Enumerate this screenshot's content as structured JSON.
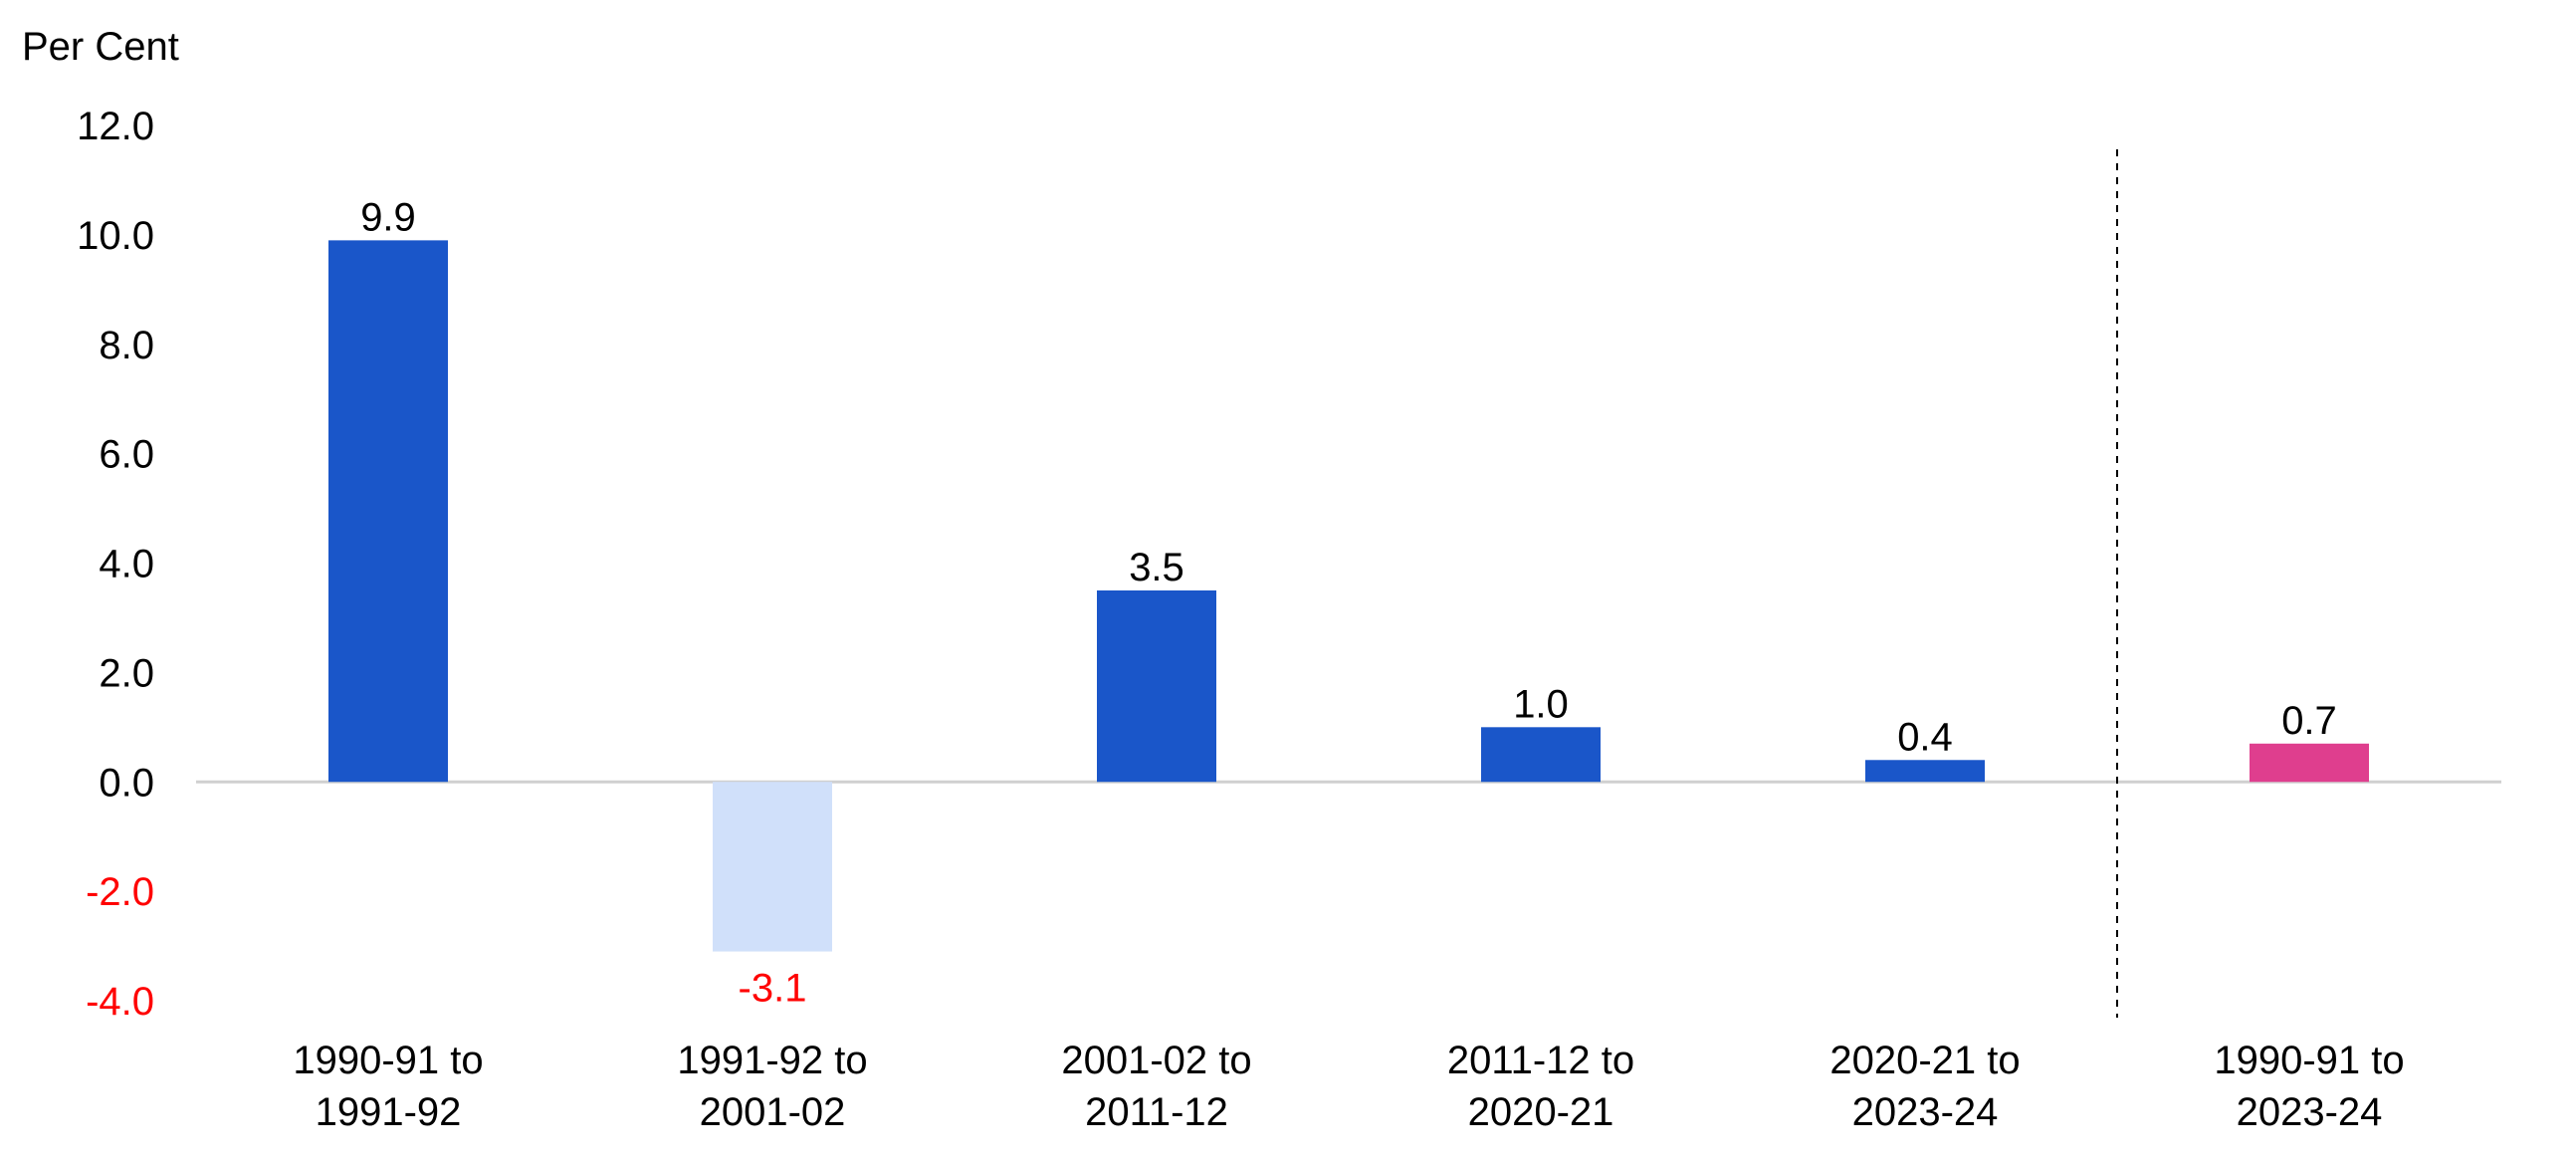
{
  "chart_data": {
    "type": "bar",
    "unit_label": "Per Cent",
    "categories": [
      [
        "1990-91 to",
        "1991-92"
      ],
      [
        "1991-92 to",
        "2001-02"
      ],
      [
        "2001-02 to",
        "2011-12"
      ],
      [
        "2011-12 to",
        "2020-21"
      ],
      [
        "2020-21 to",
        "2023-24"
      ],
      [
        "1990-91 to",
        "2023-24"
      ]
    ],
    "values": [
      9.9,
      -3.1,
      3.5,
      1.0,
      0.4,
      0.7
    ],
    "value_labels": [
      "9.9",
      "-3.1",
      "3.5",
      "1.0",
      "0.4",
      "0.7"
    ],
    "bar_colors": [
      "#1a56c9",
      "#d0e0fa",
      "#1a56c9",
      "#1a56c9",
      "#1a56c9",
      "#df3e8e"
    ],
    "ylim": [
      -4.0,
      12.0
    ],
    "yticks": [
      "12.0",
      "10.0",
      "8.0",
      "6.0",
      "4.0",
      "2.0",
      "0.0",
      "-2.0",
      "-4.0"
    ],
    "ytick_values": [
      12,
      10,
      8,
      6,
      4,
      2,
      0,
      -2,
      -4
    ],
    "negative_color": "#ff0000",
    "separator": "dashed line before last category",
    "grid": false,
    "legend": "none"
  }
}
